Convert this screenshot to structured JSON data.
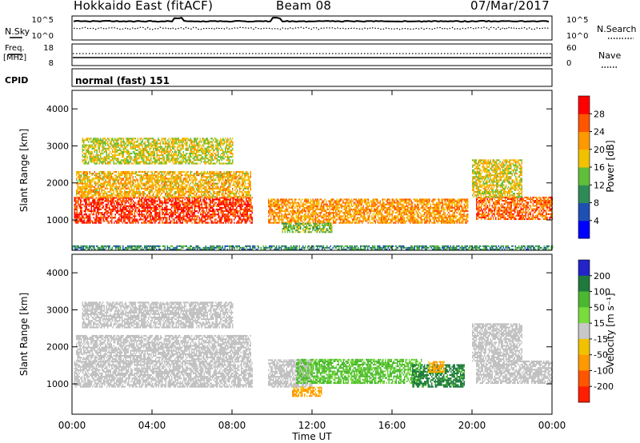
{
  "header": {
    "station": "Hokkaido East (fitACF)",
    "beam": "Beam 08",
    "date": "07/Mar/2017"
  },
  "top_panels": {
    "nsky_label": "N.Sky",
    "nsearch_label": "N.Search",
    "noise_ticks": [
      "10^5",
      "10^0"
    ],
    "freq_label": "Freq.",
    "freq_unit": "[MHz]",
    "freq_ticks": [
      "18",
      "8"
    ],
    "nave_label": "Nave",
    "nave_ticks": [
      "60",
      "0"
    ],
    "cpid_label": "CPID",
    "cpid_text": "normal (fast) 151"
  },
  "colors": {
    "power_scale": [
      "#0000ff",
      "#1e50b4",
      "#2e8b57",
      "#5fbf3a",
      "#f2c200",
      "#ff9900",
      "#ff5500",
      "#ff0000"
    ],
    "velocity_scale": [
      "#2323c8",
      "#1e7a3c",
      "#4cb832",
      "#78dc3c",
      "#c8c8c8",
      "#f2c200",
      "#ff9900",
      "#ff5500",
      "#ff1e00"
    ],
    "ground_scatter": "#c0c0c0"
  },
  "chart_data": [
    {
      "type": "heatmap",
      "name": "power",
      "ylabel": "Slant Range [km]",
      "yticks": [
        1000,
        2000,
        3000,
        4000
      ],
      "ylim": [
        180,
        4500
      ],
      "xlim": [
        0,
        24
      ],
      "xticks": [
        "00:00",
        "04:00",
        "08:00",
        "12:00",
        "16:00",
        "20:00",
        "00:00"
      ],
      "colorbar": {
        "label": "Power [dB]",
        "range": [
          0,
          32
        ],
        "ticks": [
          4,
          8,
          12,
          16,
          20,
          24,
          28
        ]
      },
      "echo_regions": [
        {
          "t": [
            0.1,
            9.0
          ],
          "range_km": [
            900,
            1600
          ],
          "level_db": 28
        },
        {
          "t": [
            0.2,
            8.9
          ],
          "range_km": [
            1600,
            2300
          ],
          "level_db": 20
        },
        {
          "t": [
            0.5,
            8.0
          ],
          "range_km": [
            2500,
            3200
          ],
          "level_db": 17
        },
        {
          "t": [
            9.8,
            19.8
          ],
          "range_km": [
            900,
            1550
          ],
          "level_db": 22
        },
        {
          "t": [
            10.5,
            13.0
          ],
          "range_km": [
            650,
            900
          ],
          "level_db": 14
        },
        {
          "t": [
            20.2,
            24.0
          ],
          "range_km": [
            1000,
            1600
          ],
          "level_db": 25
        },
        {
          "t": [
            20.0,
            22.5
          ],
          "range_km": [
            1600,
            2600
          ],
          "level_db": 18
        },
        {
          "t": [
            0.0,
            24.0
          ],
          "range_km": [
            180,
            300
          ],
          "level_db": 10
        }
      ]
    },
    {
      "type": "heatmap",
      "name": "velocity",
      "ylabel": "Slant Range [km]",
      "yticks": [
        1000,
        2000,
        3000,
        4000
      ],
      "ylim": [
        180,
        4500
      ],
      "xlim": [
        0,
        24
      ],
      "xticks": [
        "00:00",
        "04:00",
        "08:00",
        "12:00",
        "16:00",
        "20:00",
        "00:00"
      ],
      "xlabel": "Time UT",
      "colorbar": {
        "label": "Velocity [m s⁻¹]",
        "ticks": [
          200,
          100,
          50,
          15,
          -15,
          -50,
          -100,
          -200
        ]
      },
      "echo_regions": [
        {
          "t": [
            0.1,
            9.0
          ],
          "range_km": [
            900,
            1600
          ],
          "velocity": 0,
          "ground_scatter": true
        },
        {
          "t": [
            0.2,
            8.9
          ],
          "range_km": [
            1600,
            2300
          ],
          "velocity": 0,
          "ground_scatter": true
        },
        {
          "t": [
            0.5,
            8.0
          ],
          "range_km": [
            2500,
            3200
          ],
          "velocity": 0,
          "ground_scatter": true
        },
        {
          "t": [
            9.8,
            12.0
          ],
          "range_km": [
            900,
            1650
          ],
          "velocity": 0,
          "ground_scatter": true
        },
        {
          "t": [
            11.2,
            17.5
          ],
          "range_km": [
            1000,
            1650
          ],
          "velocity": 60
        },
        {
          "t": [
            17.0,
            19.6
          ],
          "range_km": [
            900,
            1500
          ],
          "velocity": 120
        },
        {
          "t": [
            11.0,
            12.5
          ],
          "range_km": [
            650,
            900
          ],
          "velocity": -60
        },
        {
          "t": [
            17.8,
            18.6
          ],
          "range_km": [
            1300,
            1600
          ],
          "velocity": -60
        },
        {
          "t": [
            20.2,
            24.0
          ],
          "range_km": [
            1000,
            1600
          ],
          "velocity": 0,
          "ground_scatter": true
        },
        {
          "t": [
            20.0,
            22.5
          ],
          "range_km": [
            1600,
            2600
          ],
          "velocity": 0,
          "ground_scatter": true
        }
      ]
    }
  ]
}
